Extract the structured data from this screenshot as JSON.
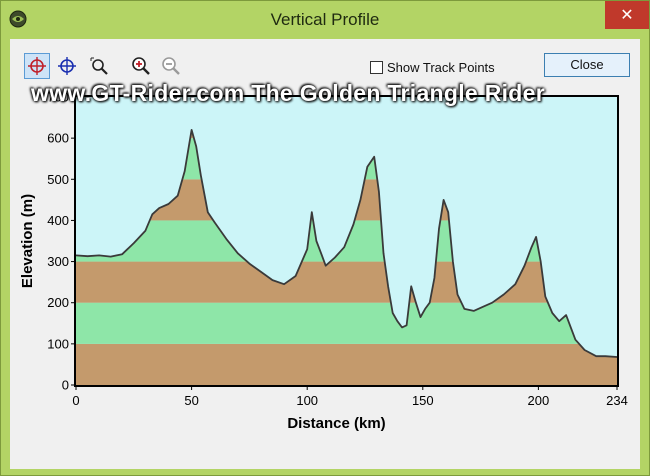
{
  "window": {
    "title": "Vertical Profile",
    "close_glyph": "✕"
  },
  "toolbar": {
    "tools": [
      {
        "name": "crosshair-red-icon",
        "active": true
      },
      {
        "name": "crosshair-blue-icon",
        "active": false
      },
      {
        "name": "zoom-area-icon",
        "active": false
      },
      {
        "name": "zoom-in-icon",
        "active": false
      },
      {
        "name": "zoom-out-icon",
        "active": false
      }
    ],
    "show_track_points_label": "Show Track Points",
    "show_track_points_checked": false,
    "close_label": "Close"
  },
  "watermark": "www.GT-Rider.com    The Golden Triangle Rider",
  "colors": {
    "sky": "#ccf5f8",
    "band_brown": "#c49a6c",
    "band_green": "#8ee6a8",
    "line": "#3a3a3a",
    "window_frame": "#b3d465"
  },
  "chart_data": {
    "type": "area",
    "xlabel": "Distance  (km)",
    "ylabel": "Elevation  (m)",
    "xlim": [
      0,
      234
    ],
    "ylim": [
      0,
      700
    ],
    "xticks": [
      0,
      50,
      100,
      150,
      200,
      234
    ],
    "yticks": [
      0,
      100,
      200,
      300,
      400,
      500,
      600,
      700
    ],
    "bands": [
      {
        "from": 0,
        "to": 100,
        "color": "brown"
      },
      {
        "from": 100,
        "to": 200,
        "color": "green"
      },
      {
        "from": 200,
        "to": 300,
        "color": "brown"
      },
      {
        "from": 300,
        "to": 400,
        "color": "green"
      },
      {
        "from": 400,
        "to": 500,
        "color": "brown"
      },
      {
        "from": 500,
        "to": 600,
        "color": "green"
      },
      {
        "from": 600,
        "to": 700,
        "color": "brown"
      }
    ],
    "series": [
      {
        "x": [
          0,
          5,
          10,
          15,
          20,
          25,
          30,
          33,
          36,
          40,
          44,
          47,
          50,
          52,
          54,
          57,
          60,
          65,
          70,
          75,
          80,
          85,
          90,
          95,
          100,
          102,
          104,
          106,
          108,
          112,
          116,
          120,
          123,
          126,
          129,
          131,
          133,
          135,
          137,
          139,
          141,
          143,
          145,
          147,
          149,
          151,
          153,
          155,
          157,
          159,
          161,
          163,
          165,
          168,
          172,
          176,
          180,
          185,
          190,
          194,
          197,
          199,
          201,
          203,
          206,
          209,
          212,
          216,
          220,
          225,
          229,
          234
        ],
        "y": [
          315,
          313,
          315,
          312,
          318,
          345,
          375,
          415,
          430,
          440,
          460,
          520,
          620,
          580,
          510,
          420,
          395,
          355,
          320,
          295,
          275,
          255,
          245,
          265,
          330,
          420,
          350,
          320,
          290,
          310,
          335,
          390,
          450,
          530,
          555,
          470,
          320,
          240,
          175,
          155,
          140,
          145,
          240,
          200,
          165,
          185,
          200,
          260,
          380,
          450,
          420,
          300,
          220,
          185,
          180,
          190,
          200,
          220,
          245,
          290,
          335,
          360,
          300,
          215,
          175,
          155,
          170,
          110,
          85,
          70,
          70,
          68
        ]
      }
    ]
  }
}
